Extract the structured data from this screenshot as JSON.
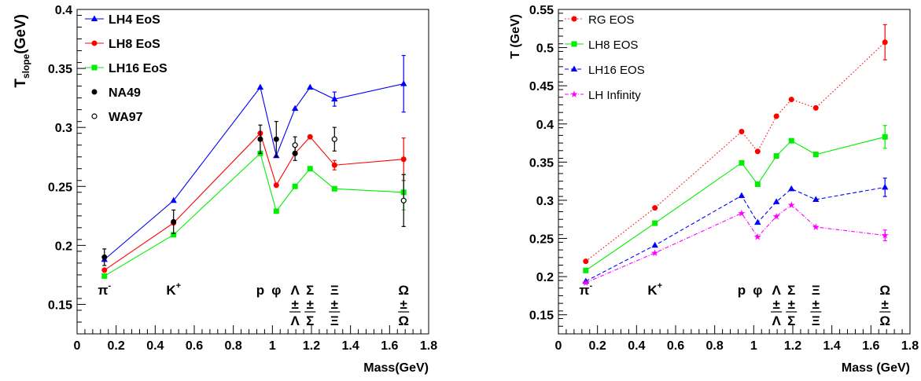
{
  "chart_data": [
    {
      "type": "line",
      "xlabel": "Mass(GeV)",
      "ylabel_main": "T",
      "ylabel_sub": "slope",
      "ylabel_unit": "(GeV)",
      "xlim": [
        0,
        1.8
      ],
      "ylim": [
        0.125,
        0.4
      ],
      "xticks": [
        0,
        0.2,
        0.4,
        0.6,
        0.8,
        1,
        1.2,
        1.4,
        1.6,
        1.8
      ],
      "xticklabels": [
        "0",
        "0.2",
        "0.4",
        "0.6",
        "0.8",
        "1",
        "1.2",
        "1.4",
        "1.6",
        "1.8"
      ],
      "yticks": [
        0.15,
        0.2,
        0.25,
        0.3,
        0.35,
        0.4
      ],
      "yticklabels": [
        "0.15",
        "0.2",
        "0.25",
        "0.3",
        "0.35",
        "0.4"
      ],
      "legend_position": "top-left",
      "series": [
        {
          "name": "LH4 EoS",
          "color": "#0000ff",
          "marker": "triangle",
          "line": "solid",
          "x": [
            0.14,
            0.494,
            0.938,
            1.02,
            1.116,
            1.193,
            1.318,
            1.672
          ],
          "y": [
            0.188,
            0.238,
            0.334,
            0.276,
            0.316,
            0.334,
            0.324,
            0.337
          ],
          "err": [
            0,
            0,
            0,
            0,
            0,
            0,
            0.006,
            0.024
          ]
        },
        {
          "name": "LH8 EoS",
          "color": "#ff0000",
          "marker": "circle",
          "line": "solid",
          "x": [
            0.14,
            0.494,
            0.938,
            1.02,
            1.116,
            1.193,
            1.318,
            1.672
          ],
          "y": [
            0.179,
            0.219,
            0.295,
            0.251,
            0.278,
            0.292,
            0.268,
            0.273
          ],
          "err": [
            0,
            0,
            0,
            0,
            0,
            0,
            0.004,
            0.018
          ]
        },
        {
          "name": "LH16 EoS",
          "color": "#00ee00",
          "marker": "square",
          "line": "solid",
          "x": [
            0.14,
            0.494,
            0.938,
            1.02,
            1.116,
            1.193,
            1.318,
            1.672
          ],
          "y": [
            0.174,
            0.209,
            0.278,
            0.229,
            0.25,
            0.265,
            0.248,
            0.245
          ],
          "err": [
            0,
            0,
            0,
            0,
            0,
            0,
            0,
            0.015
          ]
        },
        {
          "name": "NA49",
          "color": "#000000",
          "marker": "circle",
          "line": "none",
          "x": [
            0.14,
            0.494,
            0.938,
            1.02,
            1.116
          ],
          "y": [
            0.19,
            0.22,
            0.29,
            0.29,
            0.278
          ],
          "err": [
            0.007,
            0.01,
            0.012,
            0.015,
            0.006
          ]
        },
        {
          "name": "WA97",
          "color": "#000000",
          "marker": "open-circle",
          "line": "none",
          "x": [
            1.116,
            1.318,
            1.672
          ],
          "y": [
            0.285,
            0.29,
            0.238
          ],
          "err": [
            0.007,
            0.01,
            0.022
          ]
        }
      ],
      "particle_labels": [
        {
          "x": 0.14,
          "top": "π",
          "sup": "-",
          "bottom": ""
        },
        {
          "x": 0.494,
          "top": "K",
          "sup": "+",
          "bottom": ""
        },
        {
          "x": 0.938,
          "top": "p",
          "sup": "",
          "bottom": ""
        },
        {
          "x": 1.02,
          "top": "φ",
          "sup": "",
          "bottom": ""
        },
        {
          "x": 1.116,
          "top": "Λ",
          "sup": "",
          "bottom": "Λ"
        },
        {
          "x": 1.193,
          "top": "Σ",
          "sup": "",
          "bottom": "Σ"
        },
        {
          "x": 1.318,
          "top": "Ξ",
          "sup": "",
          "bottom": "Ξ"
        },
        {
          "x": 1.672,
          "top": "Ω",
          "sup": "",
          "bottom": "Ω"
        }
      ]
    },
    {
      "type": "line",
      "xlabel": "Mass (GeV)",
      "ylabel": "T (GeV)",
      "xlim": [
        0,
        1.8
      ],
      "ylim": [
        0.125,
        0.55
      ],
      "xticks": [
        0,
        0.2,
        0.4,
        0.6,
        0.8,
        1,
        1.2,
        1.4,
        1.6,
        1.8
      ],
      "xticklabels": [
        "0",
        "0.2",
        "0.4",
        "0.6",
        "0.8",
        "1",
        "1.2",
        "1.4",
        "1.6",
        "1.8"
      ],
      "yticks": [
        0.15,
        0.2,
        0.25,
        0.3,
        0.35,
        0.4,
        0.45,
        0.5,
        0.55
      ],
      "yticklabels": [
        "0.15",
        "0.2",
        "0.25",
        "0.3",
        "0.35",
        "0.4",
        "0.45",
        "0.5",
        "0.55"
      ],
      "legend_position": "top-left",
      "series": [
        {
          "name": "RG EOS",
          "color": "#ff0000",
          "marker": "circle",
          "line": "dotted",
          "x": [
            0.14,
            0.494,
            0.938,
            1.02,
            1.116,
            1.193,
            1.318,
            1.672
          ],
          "y": [
            0.22,
            0.29,
            0.39,
            0.364,
            0.41,
            0.432,
            0.421,
            0.507
          ],
          "err": [
            0,
            0,
            0,
            0,
            0,
            0,
            0,
            0.023
          ]
        },
        {
          "name": "LH8 EOS",
          "color": "#00ee00",
          "marker": "square",
          "line": "solid",
          "x": [
            0.14,
            0.494,
            0.938,
            1.02,
            1.116,
            1.193,
            1.318,
            1.672
          ],
          "y": [
            0.208,
            0.27,
            0.349,
            0.321,
            0.358,
            0.378,
            0.36,
            0.383
          ],
          "err": [
            0,
            0,
            0,
            0,
            0,
            0,
            0.003,
            0.015
          ]
        },
        {
          "name": "LH16 EOS",
          "color": "#0000ff",
          "marker": "triangle",
          "line": "dashed",
          "x": [
            0.14,
            0.494,
            0.938,
            1.02,
            1.116,
            1.193,
            1.318,
            1.672
          ],
          "y": [
            0.194,
            0.241,
            0.306,
            0.271,
            0.298,
            0.315,
            0.301,
            0.317
          ],
          "err": [
            0,
            0,
            0,
            0,
            0,
            0,
            0,
            0.012
          ]
        },
        {
          "name": "LH Infinity",
          "color": "#ff00ff",
          "marker": "star",
          "line": "dashdot",
          "x": [
            0.14,
            0.494,
            0.938,
            1.02,
            1.116,
            1.193,
            1.318,
            1.672
          ],
          "y": [
            0.192,
            0.231,
            0.283,
            0.252,
            0.279,
            0.294,
            0.265,
            0.254
          ],
          "err": [
            0,
            0,
            0,
            0,
            0,
            0,
            0,
            0.007
          ]
        }
      ],
      "particle_labels": [
        {
          "x": 0.14,
          "top": "π",
          "sup": "-",
          "bottom": ""
        },
        {
          "x": 0.494,
          "top": "K",
          "sup": "+",
          "bottom": ""
        },
        {
          "x": 0.938,
          "top": "p",
          "sup": "",
          "bottom": ""
        },
        {
          "x": 1.02,
          "top": "φ",
          "sup": "",
          "bottom": ""
        },
        {
          "x": 1.116,
          "top": "Λ",
          "sup": "",
          "bottom": "Λ"
        },
        {
          "x": 1.193,
          "top": "Σ",
          "sup": "",
          "bottom": "Σ"
        },
        {
          "x": 1.318,
          "top": "Ξ",
          "sup": "",
          "bottom": "Ξ"
        },
        {
          "x": 1.672,
          "top": "Ω",
          "sup": "",
          "bottom": "Ω"
        }
      ]
    }
  ]
}
